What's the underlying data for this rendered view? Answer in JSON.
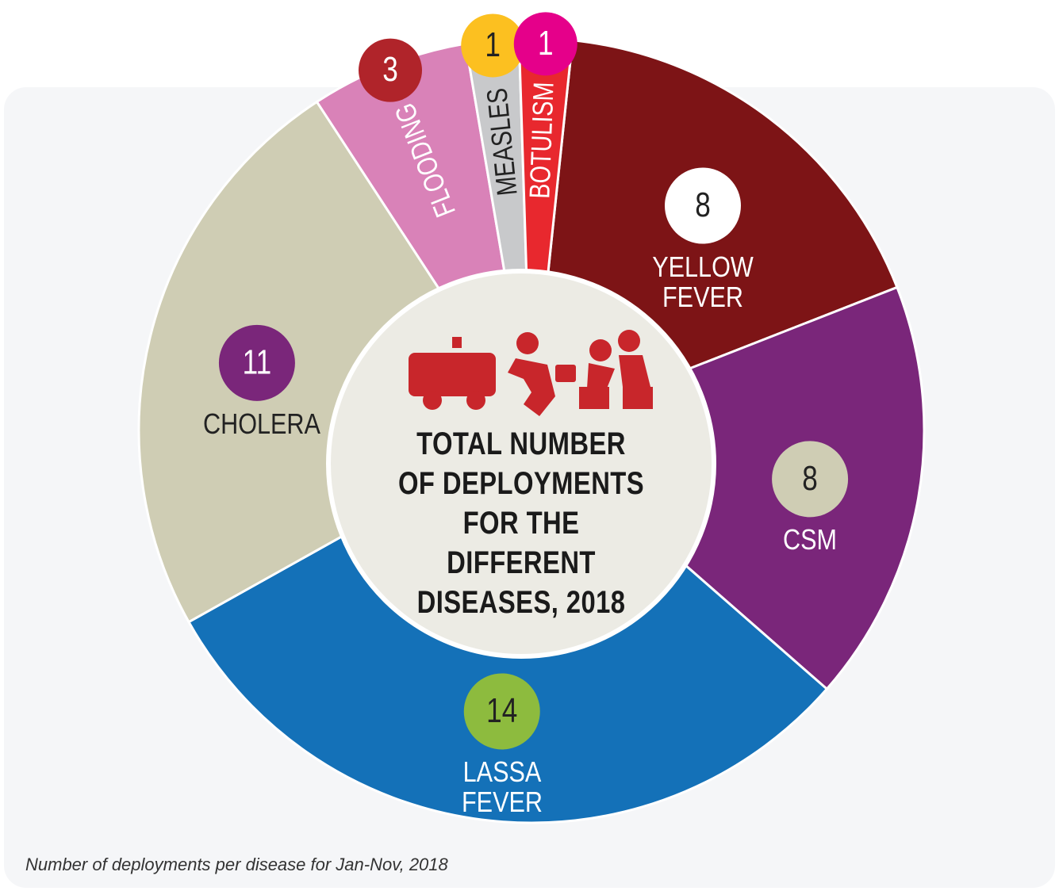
{
  "chart_data": {
    "type": "pie",
    "title": "TOTAL NUMBER OF DEPLOYMENTS FOR THE DIFFERENT DISEASES, 2018",
    "caption": "Number of deployments per disease for Jan-Nov, 2018",
    "categories": [
      "YELLOW FEVER",
      "CSM",
      "LASSA FEVER",
      "CHOLERA",
      "FLOODING",
      "MEASLES",
      "BOTULISM"
    ],
    "values": [
      8,
      8,
      14,
      11,
      3,
      1,
      1
    ],
    "colors": [
      "#7d1416",
      "#7a267a",
      "#1471b8",
      "#cfcdb4",
      "#d982b8",
      "#c8c9cb",
      "#e8282e"
    ],
    "label_colors": [
      "#ffffff",
      "#ffffff",
      "#ffffff",
      "#222222",
      "#ffffff",
      "#222222",
      "#ffffff"
    ],
    "badge_colors": [
      "#ffffff",
      "#cfcdb4",
      "#8dbb3e",
      "#7a267a",
      "#b0242a",
      "#fcc020",
      "#e5008a"
    ],
    "badge_text_colors": [
      "#222222",
      "#222222",
      "#222222",
      "#ffffff",
      "#ffffff",
      "#222222",
      "#ffffff"
    ]
  }
}
